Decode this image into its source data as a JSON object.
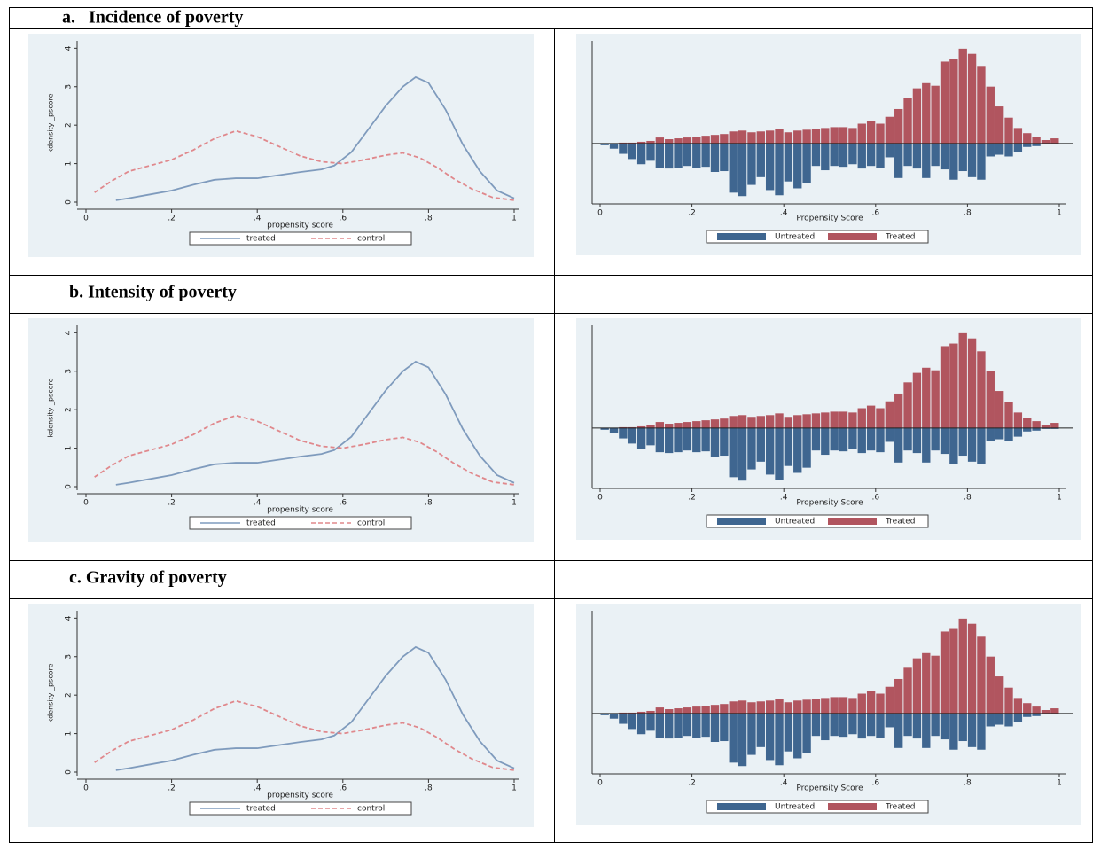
{
  "sections": [
    "a.   Incidence of poverty",
    "b. Intensity of poverty",
    "c. Gravity of poverty"
  ],
  "chart_data": [
    {
      "type": "line",
      "xlabel": "propensity score",
      "ylabel": "kdensity _pscore",
      "xlim": [
        0,
        1
      ],
      "ylim": [
        0,
        4.1
      ],
      "xticks": [
        0,
        {
          "value": 0.2,
          "label": ".2"
        },
        {
          "value": 0.4,
          "label": ".4"
        },
        {
          "value": 0.6,
          "label": ".6"
        },
        {
          "value": 0.8,
          "label": ".8"
        },
        1
      ],
      "yticks": [
        0,
        1,
        2,
        3,
        4
      ],
      "legend": "bottom",
      "series": [
        {
          "name": "treated",
          "color": "#7f9bbd",
          "linestyle": "solid",
          "x": [
            0.07,
            0.1,
            0.15,
            0.2,
            0.25,
            0.3,
            0.35,
            0.4,
            0.45,
            0.5,
            0.55,
            0.58,
            0.62,
            0.66,
            0.7,
            0.74,
            0.77,
            0.8,
            0.84,
            0.88,
            0.92,
            0.96,
            1.0
          ],
          "values": [
            0.05,
            0.1,
            0.2,
            0.3,
            0.45,
            0.58,
            0.62,
            0.62,
            0.7,
            0.78,
            0.85,
            0.95,
            1.3,
            1.9,
            2.5,
            3.0,
            3.25,
            3.1,
            2.4,
            1.5,
            0.8,
            0.3,
            0.1
          ]
        },
        {
          "name": "control",
          "color": "#e0888c",
          "linestyle": "dashed",
          "x": [
            0.02,
            0.06,
            0.1,
            0.15,
            0.2,
            0.25,
            0.3,
            0.35,
            0.4,
            0.45,
            0.5,
            0.55,
            0.6,
            0.65,
            0.7,
            0.74,
            0.78,
            0.82,
            0.86,
            0.9,
            0.95,
            1.0
          ],
          "values": [
            0.25,
            0.55,
            0.8,
            0.95,
            1.1,
            1.35,
            1.65,
            1.85,
            1.7,
            1.45,
            1.2,
            1.05,
            1.0,
            1.1,
            1.22,
            1.28,
            1.15,
            0.9,
            0.6,
            0.35,
            0.12,
            0.05
          ]
        }
      ]
    },
    {
      "type": "histogram",
      "xlabel": "Propensity Score",
      "xlim": [
        0,
        1
      ],
      "ylim": [
        -7,
        11.5
      ],
      "xticks": [
        0,
        {
          "value": 0.2,
          "label": ".2"
        },
        {
          "value": 0.4,
          "label": ".4"
        },
        {
          "value": 0.6,
          "label": ".6"
        },
        {
          "value": 0.8,
          "label": ".8"
        },
        1
      ],
      "legend": "bottom",
      "bins": [
        0,
        0.02,
        0.04,
        0.06,
        0.08,
        0.1,
        0.12,
        0.14,
        0.16,
        0.18,
        0.2,
        0.22,
        0.24,
        0.26,
        0.28,
        0.3,
        0.32,
        0.34,
        0.36,
        0.38,
        0.4,
        0.42,
        0.44,
        0.46,
        0.48,
        0.5,
        0.52,
        0.54,
        0.56,
        0.58,
        0.6,
        0.62,
        0.64,
        0.66,
        0.68,
        0.7,
        0.72,
        0.74,
        0.76,
        0.78,
        0.8,
        0.82,
        0.84,
        0.86,
        0.88,
        0.9,
        0.92,
        0.94,
        0.96,
        0.98,
        1.0
      ],
      "series": [
        {
          "name": "Untreated",
          "color": "#3f6690",
          "values": [
            -0.2,
            -0.6,
            -1.2,
            -1.8,
            -2.4,
            -2.0,
            -2.8,
            -2.9,
            -2.8,
            -2.6,
            -2.8,
            -2.7,
            -3.3,
            -3.2,
            -5.7,
            -6.1,
            -4.8,
            -3.9,
            -5.4,
            -6.0,
            -4.4,
            -5.2,
            -4.6,
            -2.6,
            -3.1,
            -2.6,
            -2.7,
            -2.4,
            -2.9,
            -2.6,
            -2.8,
            -1.6,
            -4.0,
            -2.6,
            -2.9,
            -4.0,
            -2.6,
            -3.0,
            -4.2,
            -3.2,
            -3.9,
            -4.2,
            -1.5,
            -1.3,
            -1.5,
            -1.0,
            -0.4,
            -0.3,
            -0.1,
            -0.1
          ]
        },
        {
          "name": "Treated",
          "color": "#b1555f",
          "values": [
            0,
            0,
            0.1,
            0.1,
            0.2,
            0.3,
            0.7,
            0.5,
            0.6,
            0.7,
            0.8,
            0.9,
            1.0,
            1.1,
            1.4,
            1.5,
            1.3,
            1.4,
            1.5,
            1.7,
            1.3,
            1.5,
            1.6,
            1.7,
            1.8,
            1.9,
            1.9,
            1.8,
            2.3,
            2.6,
            2.3,
            3.1,
            4.0,
            5.3,
            6.4,
            7.0,
            6.7,
            9.5,
            9.8,
            11.0,
            10.4,
            8.9,
            6.6,
            4.3,
            3.0,
            1.8,
            1.2,
            0.8,
            0.4,
            0.6
          ]
        }
      ]
    },
    {
      "type": "line",
      "xlabel": "propensity score",
      "ylabel": "kdensity _pscore",
      "xlim": [
        0,
        1
      ],
      "ylim": [
        0,
        4.1
      ],
      "xticks": [
        0,
        {
          "value": 0.2,
          "label": ".2"
        },
        {
          "value": 0.4,
          "label": ".4"
        },
        {
          "value": 0.6,
          "label": ".6"
        },
        {
          "value": 0.8,
          "label": ".8"
        },
        1
      ],
      "yticks": [
        0,
        1,
        2,
        3,
        4
      ],
      "legend": "bottom",
      "series": [
        {
          "name": "treated",
          "color": "#7f9bbd",
          "linestyle": "solid",
          "x": [
            0.07,
            0.1,
            0.15,
            0.2,
            0.25,
            0.3,
            0.35,
            0.4,
            0.45,
            0.5,
            0.55,
            0.58,
            0.62,
            0.66,
            0.7,
            0.74,
            0.77,
            0.8,
            0.84,
            0.88,
            0.92,
            0.96,
            1.0
          ],
          "values": [
            0.05,
            0.1,
            0.2,
            0.3,
            0.45,
            0.58,
            0.62,
            0.62,
            0.7,
            0.78,
            0.85,
            0.95,
            1.3,
            1.9,
            2.5,
            3.0,
            3.25,
            3.1,
            2.4,
            1.5,
            0.8,
            0.3,
            0.1
          ]
        },
        {
          "name": "control",
          "color": "#e0888c",
          "linestyle": "dashed",
          "x": [
            0.02,
            0.06,
            0.1,
            0.15,
            0.2,
            0.25,
            0.3,
            0.35,
            0.4,
            0.45,
            0.5,
            0.55,
            0.6,
            0.65,
            0.7,
            0.74,
            0.78,
            0.82,
            0.86,
            0.9,
            0.95,
            1.0
          ],
          "values": [
            0.25,
            0.55,
            0.8,
            0.95,
            1.1,
            1.35,
            1.65,
            1.85,
            1.7,
            1.45,
            1.2,
            1.05,
            1.0,
            1.1,
            1.22,
            1.28,
            1.15,
            0.9,
            0.6,
            0.35,
            0.12,
            0.05
          ]
        }
      ]
    },
    {
      "type": "histogram",
      "xlabel": "Propensity Score",
      "xlim": [
        0,
        1
      ],
      "ylim": [
        -7,
        11.5
      ],
      "xticks": [
        0,
        {
          "value": 0.2,
          "label": ".2"
        },
        {
          "value": 0.4,
          "label": ".4"
        },
        {
          "value": 0.6,
          "label": ".6"
        },
        {
          "value": 0.8,
          "label": ".8"
        },
        1
      ],
      "legend": "bottom",
      "bins": [
        0,
        0.02,
        0.04,
        0.06,
        0.08,
        0.1,
        0.12,
        0.14,
        0.16,
        0.18,
        0.2,
        0.22,
        0.24,
        0.26,
        0.28,
        0.3,
        0.32,
        0.34,
        0.36,
        0.38,
        0.4,
        0.42,
        0.44,
        0.46,
        0.48,
        0.5,
        0.52,
        0.54,
        0.56,
        0.58,
        0.6,
        0.62,
        0.64,
        0.66,
        0.68,
        0.7,
        0.72,
        0.74,
        0.76,
        0.78,
        0.8,
        0.82,
        0.84,
        0.86,
        0.88,
        0.9,
        0.92,
        0.94,
        0.96,
        0.98,
        1.0
      ],
      "series": [
        {
          "name": "Untreated",
          "color": "#3f6690",
          "values": [
            -0.2,
            -0.6,
            -1.2,
            -1.8,
            -2.4,
            -2.0,
            -2.8,
            -2.9,
            -2.8,
            -2.6,
            -2.8,
            -2.7,
            -3.3,
            -3.2,
            -5.7,
            -6.1,
            -4.8,
            -3.9,
            -5.4,
            -6.0,
            -4.4,
            -5.2,
            -4.6,
            -2.6,
            -3.1,
            -2.6,
            -2.7,
            -2.4,
            -2.9,
            -2.6,
            -2.8,
            -1.6,
            -4.0,
            -2.6,
            -2.9,
            -4.0,
            -2.6,
            -3.0,
            -4.2,
            -3.2,
            -3.9,
            -4.2,
            -1.5,
            -1.3,
            -1.5,
            -1.0,
            -0.4,
            -0.3,
            -0.1,
            -0.1
          ]
        },
        {
          "name": "Treated",
          "color": "#b1555f",
          "values": [
            0,
            0,
            0.1,
            0.1,
            0.2,
            0.3,
            0.7,
            0.5,
            0.6,
            0.7,
            0.8,
            0.9,
            1.0,
            1.1,
            1.4,
            1.5,
            1.3,
            1.4,
            1.5,
            1.7,
            1.3,
            1.5,
            1.6,
            1.7,
            1.8,
            1.9,
            1.9,
            1.8,
            2.3,
            2.6,
            2.3,
            3.1,
            4.0,
            5.3,
            6.4,
            7.0,
            6.7,
            9.5,
            9.8,
            11.0,
            10.4,
            8.9,
            6.6,
            4.3,
            3.0,
            1.8,
            1.2,
            0.8,
            0.4,
            0.6
          ]
        }
      ]
    },
    {
      "type": "line",
      "xlabel": "propensity score",
      "ylabel": "kdensity _pscore",
      "xlim": [
        0,
        1
      ],
      "ylim": [
        0,
        4.1
      ],
      "xticks": [
        0,
        {
          "value": 0.2,
          "label": ".2"
        },
        {
          "value": 0.4,
          "label": ".4"
        },
        {
          "value": 0.6,
          "label": ".6"
        },
        {
          "value": 0.8,
          "label": ".8"
        },
        1
      ],
      "yticks": [
        0,
        1,
        2,
        3,
        4
      ],
      "legend": "bottom",
      "series": [
        {
          "name": "treated",
          "color": "#7f9bbd",
          "linestyle": "solid",
          "x": [
            0.07,
            0.1,
            0.15,
            0.2,
            0.25,
            0.3,
            0.35,
            0.4,
            0.45,
            0.5,
            0.55,
            0.58,
            0.62,
            0.66,
            0.7,
            0.74,
            0.77,
            0.8,
            0.84,
            0.88,
            0.92,
            0.96,
            1.0
          ],
          "values": [
            0.05,
            0.1,
            0.2,
            0.3,
            0.45,
            0.58,
            0.62,
            0.62,
            0.7,
            0.78,
            0.85,
            0.95,
            1.3,
            1.9,
            2.5,
            3.0,
            3.25,
            3.1,
            2.4,
            1.5,
            0.8,
            0.3,
            0.1
          ]
        },
        {
          "name": "control",
          "color": "#e0888c",
          "linestyle": "dashed",
          "x": [
            0.02,
            0.06,
            0.1,
            0.15,
            0.2,
            0.25,
            0.3,
            0.35,
            0.4,
            0.45,
            0.5,
            0.55,
            0.6,
            0.65,
            0.7,
            0.74,
            0.78,
            0.82,
            0.86,
            0.9,
            0.95,
            1.0
          ],
          "values": [
            0.25,
            0.55,
            0.8,
            0.95,
            1.1,
            1.35,
            1.65,
            1.85,
            1.7,
            1.45,
            1.2,
            1.05,
            1.0,
            1.1,
            1.22,
            1.28,
            1.15,
            0.9,
            0.6,
            0.35,
            0.12,
            0.05
          ]
        }
      ]
    },
    {
      "type": "histogram",
      "xlabel": "Propensity Score",
      "xlim": [
        0,
        1
      ],
      "ylim": [
        -7,
        11.5
      ],
      "xticks": [
        0,
        {
          "value": 0.2,
          "label": ".2"
        },
        {
          "value": 0.4,
          "label": ".4"
        },
        {
          "value": 0.6,
          "label": ".6"
        },
        {
          "value": 0.8,
          "label": ".8"
        },
        1
      ],
      "legend": "bottom",
      "bins": [
        0,
        0.02,
        0.04,
        0.06,
        0.08,
        0.1,
        0.12,
        0.14,
        0.16,
        0.18,
        0.2,
        0.22,
        0.24,
        0.26,
        0.28,
        0.3,
        0.32,
        0.34,
        0.36,
        0.38,
        0.4,
        0.42,
        0.44,
        0.46,
        0.48,
        0.5,
        0.52,
        0.54,
        0.56,
        0.58,
        0.6,
        0.62,
        0.64,
        0.66,
        0.68,
        0.7,
        0.72,
        0.74,
        0.76,
        0.78,
        0.8,
        0.82,
        0.84,
        0.86,
        0.88,
        0.9,
        0.92,
        0.94,
        0.96,
        0.98,
        1.0
      ],
      "series": [
        {
          "name": "Untreated",
          "color": "#3f6690",
          "values": [
            -0.2,
            -0.6,
            -1.2,
            -1.8,
            -2.4,
            -2.0,
            -2.8,
            -2.9,
            -2.8,
            -2.6,
            -2.8,
            -2.7,
            -3.3,
            -3.2,
            -5.7,
            -6.1,
            -4.8,
            -3.9,
            -5.4,
            -6.0,
            -4.4,
            -5.2,
            -4.6,
            -2.6,
            -3.1,
            -2.6,
            -2.7,
            -2.4,
            -2.9,
            -2.6,
            -2.8,
            -1.6,
            -4.0,
            -2.6,
            -2.9,
            -4.0,
            -2.6,
            -3.0,
            -4.2,
            -3.2,
            -3.9,
            -4.2,
            -1.5,
            -1.3,
            -1.5,
            -1.0,
            -0.4,
            -0.3,
            -0.1,
            -0.1
          ]
        },
        {
          "name": "Treated",
          "color": "#b1555f",
          "values": [
            0,
            0,
            0.1,
            0.1,
            0.2,
            0.3,
            0.7,
            0.5,
            0.6,
            0.7,
            0.8,
            0.9,
            1.0,
            1.1,
            1.4,
            1.5,
            1.3,
            1.4,
            1.5,
            1.7,
            1.3,
            1.5,
            1.6,
            1.7,
            1.8,
            1.9,
            1.9,
            1.8,
            2.3,
            2.6,
            2.3,
            3.1,
            4.0,
            5.3,
            6.4,
            7.0,
            6.7,
            9.5,
            9.8,
            11.0,
            10.4,
            8.9,
            6.6,
            4.3,
            3.0,
            1.8,
            1.2,
            0.8,
            0.4,
            0.6
          ]
        }
      ]
    }
  ]
}
